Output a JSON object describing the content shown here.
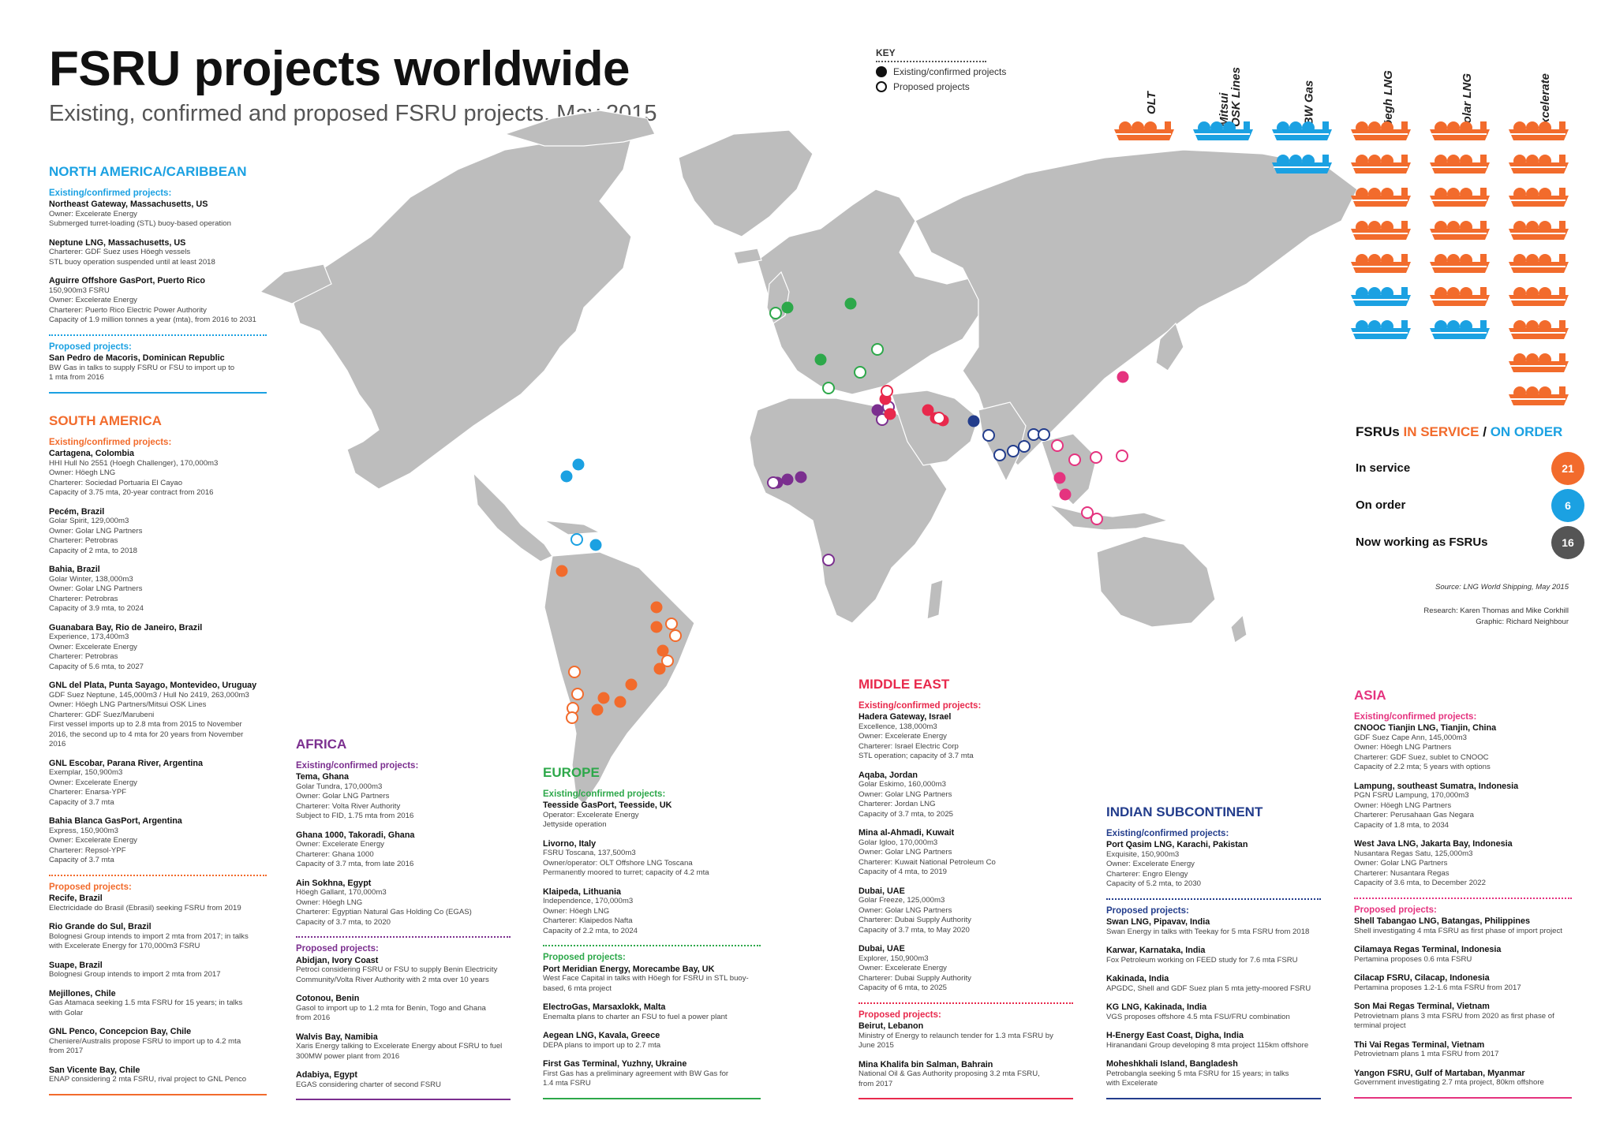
{
  "header": {
    "title": "FSRU projects worldwide",
    "subtitle": "Existing, confirmed and proposed FSRU projects, May 2015"
  },
  "key": {
    "heading": "KEY",
    "existing": "Existing/confirmed projects",
    "proposed": "Proposed projects"
  },
  "colors": {
    "north_america": "#1ba1e2",
    "south_america": "#f26b2c",
    "africa": "#7b2f8f",
    "europe": "#2da84a",
    "middle_east": "#e8294c",
    "indian": "#233d8c",
    "asia": "#e5337f",
    "land": "#bdbdbd",
    "orange": "#f26b2c",
    "blue": "#1ba1e2",
    "grey": "#555555"
  },
  "operators": [
    {
      "name": "OLT",
      "fleet": [
        "orange"
      ]
    },
    {
      "name": "Mitsui\nOSK Lines",
      "fleet": [
        "blue"
      ]
    },
    {
      "name": "BW Gas",
      "fleet": [
        "blue",
        "blue"
      ]
    },
    {
      "name": "Höegh LNG",
      "fleet": [
        "orange",
        "orange",
        "orange",
        "orange",
        "orange",
        "blue",
        "blue"
      ]
    },
    {
      "name": "Golar LNG",
      "fleet": [
        "orange",
        "orange",
        "orange",
        "orange",
        "orange",
        "orange",
        "blue"
      ]
    },
    {
      "name": "Excelerate",
      "fleet": [
        "orange",
        "orange",
        "orange",
        "orange",
        "orange",
        "orange",
        "orange",
        "orange",
        "orange"
      ]
    }
  ],
  "fleet_summary": {
    "title_a": "FSRUs ",
    "title_b": "IN SERVICE",
    "title_sep": " / ",
    "title_c": "ON ORDER",
    "rows": [
      {
        "label": "In service",
        "value": "21",
        "color": "#f26b2c"
      },
      {
        "label": "On order",
        "value": "6",
        "color": "#1ba1e2"
      },
      {
        "label": "Now working as FSRUs",
        "value": "16",
        "color": "#555555"
      }
    ]
  },
  "credits": {
    "source": "Source: LNG World Shipping, May 2015",
    "research": "Research: Karen Thomas and Mike Corkhill",
    "graphic": "Graphic: Richard Neighbour"
  },
  "regions": {
    "north_america": {
      "title": "NORTH AMERICA/CARIBBEAN",
      "existing_head": "Existing/confirmed projects:",
      "existing": [
        {
          "name": "Northeast Gateway, Massachusetts, US",
          "lines": [
            "Owner: Excelerate Energy",
            "Submerged turret-loading (STL) buoy-based operation"
          ]
        },
        {
          "name": "Neptune LNG, Massachusetts, US",
          "lines": [
            "Charterer: GDF Suez uses Höegh vessels",
            "STL buoy operation suspended until at least 2018"
          ]
        },
        {
          "name": "Aguirre Offshore GasPort, Puerto Rico",
          "lines": [
            "150,900m3 FSRU",
            "Owner: Excelerate Energy",
            "Charterer: Puerto Rico Electric Power Authority",
            "Capacity of 1.9 million tonnes a year (mta), from 2016 to 2031"
          ]
        }
      ],
      "proposed_head": "Proposed projects:",
      "proposed": [
        {
          "name": "San Pedro de Macoris, Dominican Republic",
          "lines": [
            "BW Gas in talks to supply FSRU or FSU to import up to",
            "1 mta from 2016"
          ]
        }
      ]
    },
    "south_america": {
      "title": "SOUTH AMERICA",
      "existing_head": "Existing/confirmed projects:",
      "existing": [
        {
          "name": "Cartagena, Colombia",
          "lines": [
            "HHI Hull No 2551 (Hoegh Challenger), 170,000m3",
            "Owner: Höegh LNG",
            "Charterer: Sociedad Portuaria El Cayao",
            "Capacity of 3.75 mta, 20-year contract from 2016"
          ]
        },
        {
          "name": "Pecém, Brazil",
          "lines": [
            "Golar Spirit, 129,000m3",
            "Owner: Golar LNG Partners",
            "Charterer: Petrobras",
            "Capacity of 2 mta, to 2018"
          ]
        },
        {
          "name": "Bahia, Brazil",
          "lines": [
            "Golar Winter, 138,000m3",
            "Owner: Golar LNG Partners",
            "Charterer: Petrobras",
            "Capacity of 3.9 mta, to 2024"
          ]
        },
        {
          "name": "Guanabara Bay, Rio de Janeiro, Brazil",
          "lines": [
            "Experience, 173,400m3",
            "Owner: Excelerate Energy",
            "Charterer: Petrobras",
            "Capacity of 5.6 mta, to 2027"
          ]
        },
        {
          "name": "GNL del Plata, Punta Sayago, Montevideo, Uruguay",
          "lines": [
            "GDF Suez Neptune, 145,000m3 / Hull No 2419, 263,000m3",
            "Owner: Höegh LNG Partners/Mitsui OSK Lines",
            "Charterer: GDF Suez/Marubeni",
            "First vessel imports up to 2.8 mta from 2015 to November",
            "2016, the second up to 4 mta for 20 years from November",
            "2016"
          ]
        },
        {
          "name": "GNL Escobar, Parana River, Argentina",
          "lines": [
            "Exemplar, 150,900m3",
            "Owner: Excelerate Energy",
            "Charterer: Enarsa-YPF",
            "Capacity of 3.7 mta"
          ]
        },
        {
          "name": "Bahia Blanca GasPort, Argentina",
          "lines": [
            "Express, 150,900m3",
            "Owner: Excelerate Energy",
            "Charterer: Repsol-YPF",
            "Capacity of 3.7 mta"
          ]
        }
      ],
      "proposed_head": "Proposed projects:",
      "proposed": [
        {
          "name": "Recife, Brazil",
          "lines": [
            "Electricidade do Brasil (Ebrasil) seeking FSRU from 2019"
          ]
        },
        {
          "name": "Rio Grande do Sul, Brazil",
          "lines": [
            "Bolognesi Group intends to import 2 mta from 2017; in talks",
            "with Excelerate Energy for 170,000m3 FSRU"
          ]
        },
        {
          "name": "Suape, Brazil",
          "lines": [
            "Bolognesi Group intends to import 2 mta from 2017"
          ]
        },
        {
          "name": "Mejillones, Chile",
          "lines": [
            "Gas Atamaca seeking 1.5 mta FSRU for 15 years; in talks",
            "with Golar"
          ]
        },
        {
          "name": "GNL Penco, Concepcion Bay, Chile",
          "lines": [
            "Cheniere/Australis propose FSRU to import up to 4.2 mta",
            "from 2017"
          ]
        },
        {
          "name": "San Vicente Bay, Chile",
          "lines": [
            "ENAP considering 2 mta FSRU, rival project to GNL Penco"
          ]
        }
      ]
    },
    "africa": {
      "title": "AFRICA",
      "existing_head": "Existing/confirmed projects:",
      "existing": [
        {
          "name": "Tema, Ghana",
          "lines": [
            "Golar Tundra, 170,000m3",
            "Owner: Golar LNG Partners",
            "Charterer: Volta River Authority",
            "Subject to FID, 1.75 mta from 2016"
          ]
        },
        {
          "name": "Ghana 1000, Takoradi, Ghana",
          "lines": [
            "Owner: Excelerate Energy",
            "Charterer: Ghana 1000",
            "Capacity of 3.7 mta, from late 2016"
          ]
        },
        {
          "name": "Ain Sokhna, Egypt",
          "lines": [
            "Höegh Gallant, 170,000m3",
            "Owner: Höegh LNG",
            "Charterer: Egyptian Natural Gas Holding Co (EGAS)",
            "Capacity of 3.7 mta, to 2020"
          ]
        }
      ],
      "proposed_head": "Proposed projects:",
      "proposed": [
        {
          "name": "Abidjan, Ivory Coast",
          "lines": [
            "Petroci considering FSRU or FSU to supply Benin Electricity",
            "Community/Volta River Authority with 2 mta over 10 years"
          ]
        },
        {
          "name": "Cotonou, Benin",
          "lines": [
            "Gasol to import up to 1.2 mta for Benin, Togo and Ghana",
            "from 2016"
          ]
        },
        {
          "name": "Walvis Bay, Namibia",
          "lines": [
            "Xaris Energy talking to Excelerate Energy about FSRU to fuel",
            "300MW power plant from 2016"
          ]
        },
        {
          "name": "Adabiya, Egypt",
          "lines": [
            "EGAS considering charter of second FSRU"
          ]
        }
      ]
    },
    "europe": {
      "title": "EUROPE",
      "existing_head": "Existing/confirmed projects:",
      "existing": [
        {
          "name": "Teesside GasPort, Teesside, UK",
          "lines": [
            "Operator: Excelerate Energy",
            "Jettyside operation"
          ]
        },
        {
          "name": "Livorno, Italy",
          "lines": [
            "FSRU Toscana, 137,500m3",
            "Owner/operator: OLT Offshore LNG Toscana",
            "Permanently moored to turret; capacity of 4.2 mta"
          ]
        },
        {
          "name": "Klaipeda, Lithuania",
          "lines": [
            "Independence, 170,000m3",
            "Owner: Höegh LNG",
            "Charterer: Klaipedos Nafta",
            "Capacity of 2.2 mta, to 2024"
          ]
        }
      ],
      "proposed_head": "Proposed projects:",
      "proposed": [
        {
          "name": "Port Meridian Energy, Morecambe Bay, UK",
          "lines": [
            "West Face Capital in talks with Höegh for FSRU in STL buoy-",
            "based, 6 mta project"
          ]
        },
        {
          "name": "ElectroGas, Marsaxlokk, Malta",
          "lines": [
            "Enemalta plans to charter an FSU to fuel a power plant"
          ]
        },
        {
          "name": "Aegean LNG, Kavala, Greece",
          "lines": [
            "DEPA plans to import up to 2.7 mta"
          ]
        },
        {
          "name": "First Gas Terminal, Yuzhny, Ukraine",
          "lines": [
            "First Gas has a preliminary agreement with BW Gas for",
            "1.4 mta FSRU"
          ]
        }
      ]
    },
    "middle_east": {
      "title": "MIDDLE EAST",
      "existing_head": "Existing/confirmed projects:",
      "existing": [
        {
          "name": "Hadera Gateway, Israel",
          "lines": [
            "Excellence, 138,000m3",
            "Owner: Excelerate Energy",
            "Charterer: Israel Electric Corp",
            "STL operation; capacity of 3.7 mta"
          ]
        },
        {
          "name": "Aqaba, Jordan",
          "lines": [
            "Golar Eskimo, 160,000m3",
            "Owner: Golar LNG Partners",
            "Charterer: Jordan LNG",
            "Capacity of 3.7 mta, to 2025"
          ]
        },
        {
          "name": "Mina al-Ahmadi, Kuwait",
          "lines": [
            "Golar Igloo, 170,000m3",
            "Owner: Golar LNG Partners",
            "Charterer: Kuwait National Petroleum Co",
            "Capacity of 4 mta, to 2019"
          ]
        },
        {
          "name": "Dubai, UAE",
          "lines": [
            "Golar Freeze, 125,000m3",
            "Owner: Golar LNG Partners",
            "Charterer: Dubai Supply Authority",
            "Capacity of 3.7 mta, to May 2020"
          ]
        },
        {
          "name": "Dubai, UAE",
          "lines": [
            "Explorer, 150,900m3",
            "Owner: Excelerate Energy",
            "Charterer: Dubai Supply Authority",
            "Capacity of 6 mta, to 2025"
          ]
        }
      ],
      "proposed_head": "Proposed projects:",
      "proposed": [
        {
          "name": "Beirut, Lebanon",
          "lines": [
            "Ministry of Energy to relaunch tender for 1.3 mta FSRU by",
            "June 2015"
          ]
        },
        {
          "name": "Mina Khalifa bin Salman, Bahrain",
          "lines": [
            "National Oil & Gas Authority proposing 3.2 mta FSRU,",
            "from 2017"
          ]
        }
      ]
    },
    "indian": {
      "title": "INDIAN SUBCONTINENT",
      "existing_head": "Existing/confirmed projects:",
      "existing": [
        {
          "name": "Port Qasim LNG, Karachi, Pakistan",
          "lines": [
            "Exquisite, 150,900m3",
            "Owner: Excelerate Energy",
            "Charterer: Engro Elengy",
            "Capacity of 5.2 mta, to 2030"
          ]
        }
      ],
      "proposed_head": "Proposed projects:",
      "proposed": [
        {
          "name": "Swan LNG, Pipavav, India",
          "lines": [
            "Swan Energy in talks with Teekay for 5 mta FSRU from 2018"
          ]
        },
        {
          "name": "Karwar, Karnataka, India",
          "lines": [
            "Fox Petroleum working on FEED study for 7.6 mta FSRU"
          ]
        },
        {
          "name": "Kakinada, India",
          "lines": [
            "APGDC, Shell and GDF Suez plan 5 mta jetty-moored FSRU"
          ]
        },
        {
          "name": "KG LNG, Kakinada, India",
          "lines": [
            "VGS proposes offshore 4.5 mta FSU/FRU combination"
          ]
        },
        {
          "name": "H-Energy East Coast, Digha, India",
          "lines": [
            "Hiranandani Group developing 8 mta project 115km offshore"
          ]
        },
        {
          "name": "Moheshkhali Island, Bangladesh",
          "lines": [
            "Petrobangla seeking 5 mta FSRU for 15 years; in talks",
            "with Excelerate"
          ]
        }
      ]
    },
    "asia": {
      "title": "ASIA",
      "existing_head": "Existing/confirmed projects:",
      "existing": [
        {
          "name": "CNOOC Tianjin LNG, Tianjin, China",
          "lines": [
            "GDF Suez Cape Ann, 145,000m3",
            "Owner: Höegh LNG Partners",
            "Charterer: GDF Suez, sublet to CNOOC",
            "Capacity of 2.2 mta; 5 years with options"
          ]
        },
        {
          "name": "Lampung, southeast Sumatra, Indonesia",
          "lines": [
            "PGN FSRU Lampung, 170,000m3",
            "Owner: Höegh LNG Partners",
            "Charterer: Perusahaan Gas Negara",
            "Capacity of 1.8 mta, to 2034"
          ]
        },
        {
          "name": "West Java LNG, Jakarta Bay, Indonesia",
          "lines": [
            "Nusantara Regas Satu, 125,000m3",
            "Owner: Golar LNG Partners",
            "Charterer: Nusantara Regas",
            "Capacity of 3.6 mta, to December 2022"
          ]
        }
      ],
      "proposed_head": "Proposed projects:",
      "proposed": [
        {
          "name": "Shell Tabangao LNG, Batangas, Philippines",
          "lines": [
            "Shell investigating 4 mta FSRU as first phase of import project"
          ]
        },
        {
          "name": "Cilamaya Regas Terminal, Indonesia",
          "lines": [
            "Pertamina proposes 0.6 mta FSRU"
          ]
        },
        {
          "name": "Cilacap FSRU, Cilacap, Indonesia",
          "lines": [
            "Pertamina proposes 1.2-1.6 mta FSRU from 2017"
          ]
        },
        {
          "name": "Son Mai Regas Terminal, Vietnam",
          "lines": [
            "Petrovietnam plans 3 mta FSRU from 2020 as first phase of",
            "terminal project"
          ]
        },
        {
          "name": "Thi Vai Regas Terminal, Vietnam",
          "lines": [
            "Petrovietnam plans 1 mta FSRU from 2017"
          ]
        },
        {
          "name": "Yangon FSRU, Gulf of Martaban, Myanmar",
          "lines": [
            "Government investigating 2.7 mta project, 80km offshore"
          ]
        }
      ]
    }
  }
}
